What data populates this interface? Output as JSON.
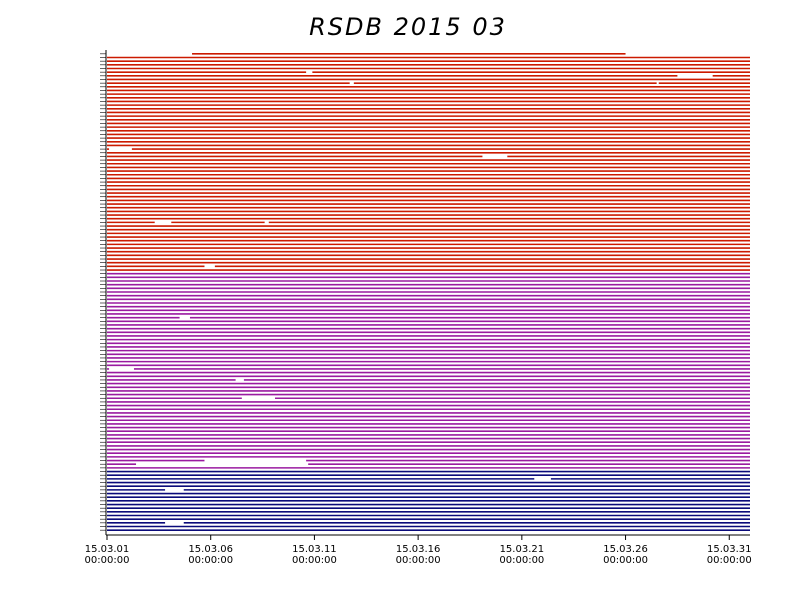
{
  "chart_data": {
    "type": "availability",
    "title": "RSDB  2015  03",
    "xlim": [
      1,
      32
    ],
    "xticks": [
      {
        "value": 1,
        "label": "15.03.01\n00:00:00"
      },
      {
        "value": 6,
        "label": "15.03.06\n00:00:00"
      },
      {
        "value": 11,
        "label": "15.03.11\n00:00:00"
      },
      {
        "value": 16,
        "label": "15.03.16\n00:00:00"
      },
      {
        "value": 21,
        "label": "15.03.21\n00:00:00"
      },
      {
        "value": 26,
        "label": "15.03.26\n00:00:00"
      },
      {
        "value": 31,
        "label": "15.03.31\n00:00:00"
      }
    ],
    "series": [
      {
        "color": "#cc1a00",
        "rows": [
          [
            [
              5.1,
              26
            ]
          ],
          [
            [
              1,
              32
            ]
          ],
          [
            [
              1,
              32
            ]
          ],
          [
            [
              1,
              32
            ]
          ],
          [
            [
              1,
              32
            ]
          ],
          [
            [
              1,
              10.6
            ],
            [
              10.9,
              32
            ]
          ],
          [
            [
              1,
              28.5
            ],
            [
              30.2,
              32
            ]
          ],
          [
            [
              1,
              32
            ]
          ],
          [
            [
              1,
              12.7
            ],
            [
              12.9,
              27.5
            ],
            [
              27.6,
              32
            ]
          ],
          [
            [
              1,
              32
            ]
          ],
          [
            [
              1,
              32
            ]
          ],
          [
            [
              1,
              32
            ]
          ],
          [
            [
              1,
              32
            ]
          ],
          [
            [
              1,
              32
            ]
          ],
          [
            [
              1,
              32
            ]
          ],
          [
            [
              1,
              32
            ]
          ],
          [
            [
              1,
              32
            ]
          ],
          [
            [
              1,
              32
            ]
          ],
          [
            [
              1,
              32
            ]
          ],
          [
            [
              1,
              32
            ]
          ],
          [
            [
              1,
              32
            ]
          ],
          [
            [
              1,
              32
            ]
          ],
          [
            [
              1,
              32
            ]
          ],
          [
            [
              1,
              32
            ]
          ],
          [
            [
              1,
              32
            ]
          ],
          [
            [
              1,
              32
            ]
          ],
          [
            [
              1,
              1.1
            ],
            [
              2.2,
              32
            ]
          ],
          [
            [
              1,
              32
            ]
          ],
          [
            [
              1,
              19.1
            ],
            [
              20.3,
              32
            ]
          ],
          [
            [
              1,
              32
            ]
          ],
          [
            [
              1,
              32
            ]
          ],
          [
            [
              1,
              32
            ]
          ],
          [
            [
              1,
              32
            ]
          ],
          [
            [
              1,
              32
            ]
          ],
          [
            [
              1,
              32
            ]
          ],
          [
            [
              1,
              32
            ]
          ],
          [
            [
              1,
              32
            ]
          ],
          [
            [
              1,
              32
            ]
          ],
          [
            [
              1,
              32
            ]
          ],
          [
            [
              1,
              32
            ]
          ],
          [
            [
              1,
              32
            ]
          ],
          [
            [
              1,
              32
            ]
          ],
          [
            [
              1,
              32
            ]
          ],
          [
            [
              1,
              32
            ]
          ],
          [
            [
              1,
              32
            ]
          ],
          [
            [
              1,
              32
            ]
          ],
          [
            [
              1,
              3.3
            ],
            [
              4.1,
              8.6
            ],
            [
              8.8,
              32
            ]
          ],
          [
            [
              1,
              32
            ]
          ],
          [
            [
              1,
              32
            ]
          ],
          [
            [
              1,
              32
            ]
          ],
          [
            [
              1,
              32
            ]
          ],
          [
            [
              1,
              32
            ]
          ],
          [
            [
              1,
              32
            ]
          ],
          [
            [
              1,
              32
            ]
          ],
          [
            [
              1,
              32
            ]
          ],
          [
            [
              1,
              32
            ]
          ],
          [
            [
              1,
              32
            ]
          ],
          [
            [
              1,
              32
            ]
          ],
          [
            [
              1,
              5.7
            ],
            [
              6.2,
              32
            ]
          ],
          [
            [
              1,
              32
            ]
          ]
        ]
      },
      {
        "color": "#9a1aa0",
        "rows": [
          [
            [
              1,
              32
            ]
          ],
          [
            [
              1,
              32
            ]
          ],
          [
            [
              1,
              32
            ]
          ],
          [
            [
              1,
              32
            ]
          ],
          [
            [
              1,
              32
            ]
          ],
          [
            [
              1,
              32
            ]
          ],
          [
            [
              1,
              32
            ]
          ],
          [
            [
              1,
              32
            ]
          ],
          [
            [
              1,
              32
            ]
          ],
          [
            [
              1,
              32
            ]
          ],
          [
            [
              1,
              32
            ]
          ],
          [
            [
              1,
              32
            ]
          ],
          [
            [
              1,
              4.5
            ],
            [
              5,
              32
            ]
          ],
          [
            [
              1,
              32
            ]
          ],
          [
            [
              1,
              32
            ]
          ],
          [
            [
              1,
              32
            ]
          ],
          [
            [
              1,
              32
            ]
          ],
          [
            [
              1,
              32
            ]
          ],
          [
            [
              1,
              32
            ]
          ],
          [
            [
              1,
              32
            ]
          ],
          [
            [
              1,
              32
            ]
          ],
          [
            [
              1,
              32
            ]
          ],
          [
            [
              1,
              32
            ]
          ],
          [
            [
              1,
              32
            ]
          ],
          [
            [
              1,
              32
            ]
          ],
          [
            [
              1,
              32
            ]
          ],
          [
            [
              1,
              1.1
            ],
            [
              2.3,
              32
            ]
          ],
          [
            [
              1,
              32
            ]
          ],
          [
            [
              1,
              32
            ]
          ],
          [
            [
              1,
              7.2
            ],
            [
              7.6,
              32
            ]
          ],
          [
            [
              1,
              32
            ]
          ],
          [
            [
              1,
              32
            ]
          ],
          [
            [
              1,
              32
            ]
          ],
          [
            [
              1,
              32
            ]
          ],
          [
            [
              1,
              7.5
            ],
            [
              9.1,
              32
            ]
          ],
          [
            [
              1,
              32
            ]
          ],
          [
            [
              1,
              32
            ]
          ],
          [
            [
              1,
              32
            ]
          ],
          [
            [
              1,
              32
            ]
          ],
          [
            [
              1,
              32
            ]
          ],
          [
            [
              1,
              32
            ]
          ],
          [
            [
              1,
              32
            ]
          ],
          [
            [
              1,
              32
            ]
          ],
          [
            [
              1,
              32
            ]
          ],
          [
            [
              1,
              32
            ]
          ],
          [
            [
              1,
              32
            ]
          ],
          [
            [
              1,
              32
            ]
          ],
          [
            [
              1,
              32
            ]
          ],
          [
            [
              1,
              32
            ]
          ],
          [
            [
              1,
              32
            ]
          ],
          [
            [
              1,
              32
            ]
          ],
          [
            [
              1,
              5.7
            ],
            [
              10.6,
              32
            ]
          ],
          [
            [
              1,
              2.4
            ],
            [
              10.7,
              32
            ]
          ],
          [
            [
              1,
              32
            ]
          ]
        ]
      },
      {
        "color": "#0a0a7a",
        "rows": [
          [
            [
              1,
              32
            ]
          ],
          [
            [
              1,
              32
            ]
          ],
          [
            [
              1,
              21.6
            ],
            [
              22.4,
              32
            ]
          ],
          [
            [
              1,
              32
            ]
          ],
          [
            [
              1,
              32
            ]
          ],
          [
            [
              1,
              3.8
            ],
            [
              4.7,
              32
            ]
          ],
          [
            [
              1,
              32
            ]
          ],
          [
            [
              1,
              32
            ]
          ],
          [
            [
              1,
              32
            ]
          ],
          [
            [
              1,
              32
            ]
          ],
          [
            [
              1,
              32
            ]
          ],
          [
            [
              1,
              32
            ]
          ],
          [
            [
              1,
              32
            ]
          ],
          [
            [
              1,
              32
            ]
          ],
          [
            [
              1,
              3.8
            ],
            [
              4.7,
              32
            ]
          ],
          [
            [
              1,
              32
            ]
          ],
          [
            [
              1,
              32
            ]
          ]
        ]
      }
    ]
  }
}
